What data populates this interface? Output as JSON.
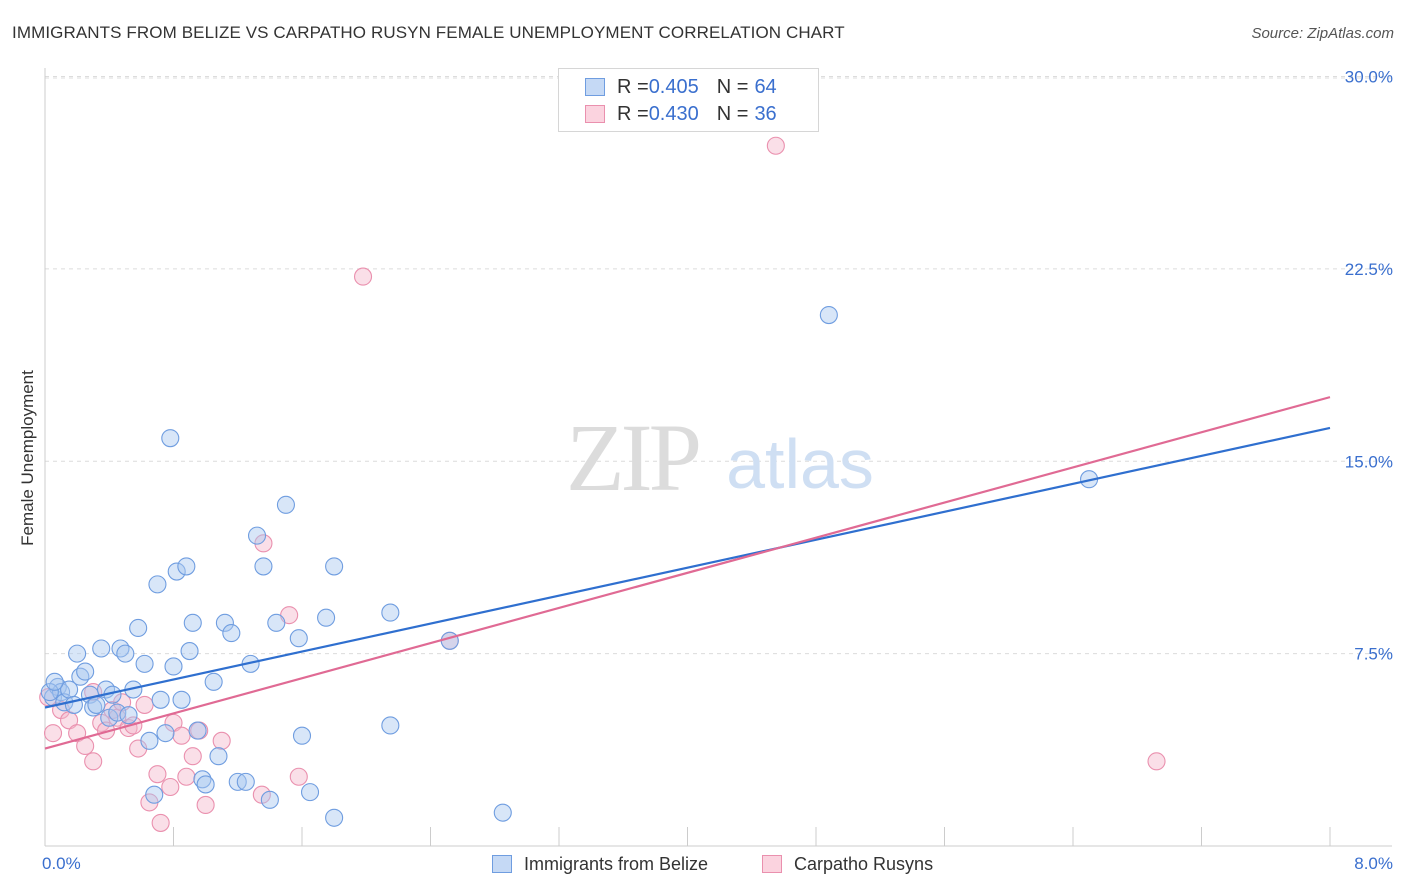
{
  "title": "IMMIGRANTS FROM BELIZE VS CARPATHO RUSYN FEMALE UNEMPLOYMENT CORRELATION CHART",
  "source": "Source: ZipAtlas.com",
  "watermark": {
    "zip": "ZIP",
    "atlas": "atlas"
  },
  "legend_top": {
    "rows": [
      {
        "r_label": "R = ",
        "r_value": "0.405",
        "n_label": "N = ",
        "n_value": "64"
      },
      {
        "r_label": "R = ",
        "r_value": "0.430",
        "n_label": "N = ",
        "n_value": "36"
      }
    ]
  },
  "colors": {
    "blue_fill": "#a9c8f0",
    "blue_stroke": "#6f9de0",
    "blue_line": "#2f6fcf",
    "pink_fill": "#f5b8cb",
    "pink_stroke": "#ea90ae",
    "pink_line": "#e06a94",
    "axis_text": "#3a6fce",
    "grid": "#dcdcdc"
  },
  "chart_data": {
    "type": "scatter",
    "title": "IMMIGRANTS FROM BELIZE VS CARPATHO RUSYN FEMALE UNEMPLOYMENT CORRELATION CHART",
    "xlabel": "",
    "ylabel": "Female Unemployment",
    "xlim": [
      0,
      8.0
    ],
    "ylim": [
      0,
      31
    ],
    "x_tick_labels": [
      "0.0%",
      "8.0%"
    ],
    "y_ticks": [
      7.5,
      15.0,
      22.5,
      30.0
    ],
    "y_tick_labels": [
      "7.5%",
      "15.0%",
      "22.5%",
      "30.0%"
    ],
    "legend_position": "top-center",
    "series": [
      {
        "name": "Immigrants from Belize",
        "color": "blue",
        "r": 0.405,
        "n": 64,
        "trend": {
          "x": [
            0,
            8.0
          ],
          "y": [
            5.4,
            16.3
          ]
        },
        "points": [
          [
            0.05,
            5.8
          ],
          [
            0.08,
            6.2
          ],
          [
            0.1,
            6.0
          ],
          [
            0.12,
            5.6
          ],
          [
            0.15,
            6.1
          ],
          [
            0.18,
            5.5
          ],
          [
            0.2,
            7.5
          ],
          [
            0.22,
            6.6
          ],
          [
            0.25,
            6.8
          ],
          [
            0.28,
            5.9
          ],
          [
            0.3,
            5.4
          ],
          [
            0.32,
            5.5
          ],
          [
            0.35,
            7.7
          ],
          [
            0.38,
            6.1
          ],
          [
            0.4,
            5.0
          ],
          [
            0.42,
            5.9
          ],
          [
            0.45,
            5.2
          ],
          [
            0.47,
            7.7
          ],
          [
            0.5,
            7.5
          ],
          [
            0.52,
            5.1
          ],
          [
            0.55,
            6.1
          ],
          [
            0.58,
            8.5
          ],
          [
            0.62,
            7.1
          ],
          [
            0.65,
            4.1
          ],
          [
            0.68,
            2.0
          ],
          [
            0.7,
            10.2
          ],
          [
            0.72,
            5.7
          ],
          [
            0.75,
            4.4
          ],
          [
            0.78,
            15.9
          ],
          [
            0.8,
            7.0
          ],
          [
            0.82,
            10.7
          ],
          [
            0.85,
            5.7
          ],
          [
            0.88,
            10.9
          ],
          [
            0.9,
            7.6
          ],
          [
            0.92,
            8.7
          ],
          [
            0.95,
            4.5
          ],
          [
            0.98,
            2.6
          ],
          [
            1.0,
            2.4
          ],
          [
            1.05,
            6.4
          ],
          [
            1.08,
            3.5
          ],
          [
            1.12,
            8.7
          ],
          [
            1.16,
            8.3
          ],
          [
            1.2,
            2.5
          ],
          [
            1.25,
            2.5
          ],
          [
            1.28,
            7.1
          ],
          [
            1.32,
            12.1
          ],
          [
            1.36,
            10.9
          ],
          [
            1.4,
            1.8
          ],
          [
            1.44,
            8.7
          ],
          [
            1.5,
            13.3
          ],
          [
            1.58,
            8.1
          ],
          [
            1.6,
            4.3
          ],
          [
            1.65,
            2.1
          ],
          [
            1.75,
            8.9
          ],
          [
            1.8,
            10.9
          ],
          [
            1.8,
            1.1
          ],
          [
            2.15,
            9.1
          ],
          [
            2.15,
            4.7
          ],
          [
            2.52,
            8.0
          ],
          [
            2.85,
            1.3
          ],
          [
            4.88,
            20.7
          ],
          [
            6.5,
            14.3
          ],
          [
            0.03,
            6.0
          ],
          [
            0.06,
            6.4
          ]
        ]
      },
      {
        "name": "Carpatho Rusyns",
        "color": "pink",
        "r": 0.43,
        "n": 36,
        "trend": {
          "x": [
            0,
            8.0
          ],
          "y": [
            3.8,
            17.5
          ]
        },
        "points": [
          [
            0.05,
            4.4
          ],
          [
            0.1,
            5.3
          ],
          [
            0.15,
            4.9
          ],
          [
            0.2,
            4.4
          ],
          [
            0.25,
            3.9
          ],
          [
            0.3,
            3.3
          ],
          [
            0.35,
            4.8
          ],
          [
            0.38,
            4.5
          ],
          [
            0.42,
            5.3
          ],
          [
            0.45,
            5.0
          ],
          [
            0.48,
            5.6
          ],
          [
            0.52,
            4.6
          ],
          [
            0.55,
            4.7
          ],
          [
            0.58,
            3.8
          ],
          [
            0.62,
            5.5
          ],
          [
            0.65,
            1.7
          ],
          [
            0.7,
            2.8
          ],
          [
            0.72,
            0.9
          ],
          [
            0.78,
            2.3
          ],
          [
            0.8,
            4.8
          ],
          [
            0.85,
            4.3
          ],
          [
            0.88,
            2.7
          ],
          [
            0.92,
            3.5
          ],
          [
            0.96,
            4.5
          ],
          [
            1.0,
            1.6
          ],
          [
            1.1,
            4.1
          ],
          [
            1.35,
            2.0
          ],
          [
            1.36,
            11.8
          ],
          [
            1.52,
            9.0
          ],
          [
            1.58,
            2.7
          ],
          [
            1.98,
            22.2
          ],
          [
            2.52,
            8.0
          ],
          [
            4.55,
            27.3
          ],
          [
            6.92,
            3.3
          ],
          [
            0.02,
            5.8
          ],
          [
            0.3,
            6.0
          ]
        ]
      }
    ]
  },
  "bottom_legend": {
    "series1": "Immigrants from Belize",
    "series2": "Carpatho Rusyns"
  }
}
